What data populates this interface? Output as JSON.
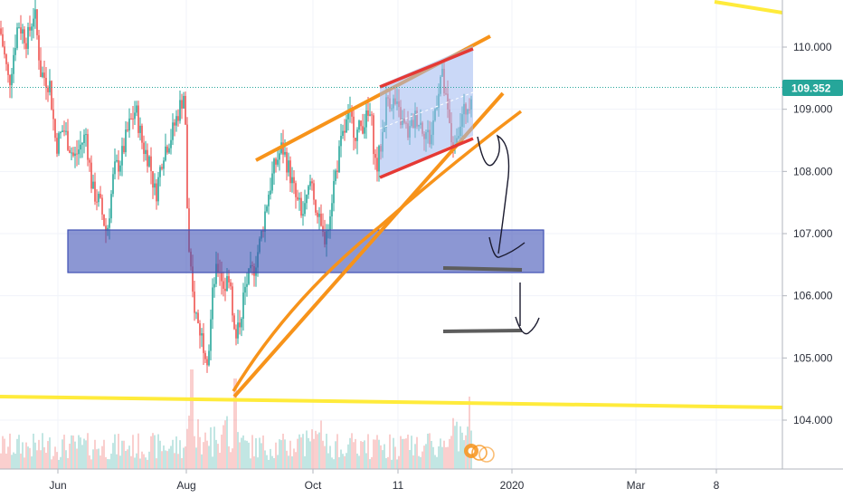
{
  "chart_data": {
    "type": "candlestick",
    "y_axis": {
      "ticks": [
        110.0,
        109.0,
        108.0,
        107.0,
        106.0,
        105.0,
        104.0
      ],
      "tick_labels": [
        "110.000",
        "109.000",
        "108.000",
        "107.000",
        "106.000",
        "105.000",
        "104.000"
      ],
      "ylim": [
        103.2,
        110.75
      ]
    },
    "x_axis": {
      "tick_labels": [
        "Jun",
        "Aug",
        "Oct",
        "11",
        "2020",
        "Mar",
        "8"
      ]
    },
    "current_price": {
      "value": 109.352,
      "label": "109.352",
      "color": "#26a69a"
    },
    "price_path": [
      [
        0,
        110.3
      ],
      [
        10,
        109.4
      ],
      [
        20,
        110.4
      ],
      [
        30,
        110.1
      ],
      [
        38,
        110.6
      ],
      [
        45,
        109.6
      ],
      [
        55,
        109.4
      ],
      [
        62,
        108.4
      ],
      [
        70,
        108.7
      ],
      [
        82,
        108.2
      ],
      [
        95,
        108.6
      ],
      [
        102,
        107.7
      ],
      [
        110,
        107.5
      ],
      [
        118,
        107.0
      ],
      [
        126,
        108.0
      ],
      [
        134,
        108.2
      ],
      [
        142,
        108.7
      ],
      [
        150,
        109.0
      ],
      [
        158,
        108.4
      ],
      [
        165,
        108.2
      ],
      [
        172,
        107.6
      ],
      [
        180,
        108.3
      ],
      [
        190,
        108.6
      ],
      [
        198,
        109.0
      ],
      [
        204,
        109.3
      ],
      [
        208,
        106.8
      ],
      [
        213,
        106.0
      ],
      [
        218,
        105.6
      ],
      [
        224,
        105.3
      ],
      [
        230,
        105.0
      ],
      [
        236,
        106.2
      ],
      [
        242,
        106.5
      ],
      [
        248,
        106.1
      ],
      [
        254,
        106.4
      ],
      [
        260,
        105.2
      ],
      [
        266,
        105.7
      ],
      [
        272,
        106.2
      ],
      [
        280,
        106.4
      ],
      [
        288,
        106.9
      ],
      [
        296,
        107.6
      ],
      [
        304,
        108.1
      ],
      [
        312,
        108.4
      ],
      [
        320,
        108.0
      ],
      [
        328,
        107.5
      ],
      [
        336,
        107.3
      ],
      [
        344,
        107.9
      ],
      [
        352,
        107.2
      ],
      [
        358,
        106.9
      ],
      [
        364,
        107.3
      ],
      [
        370,
        107.9
      ],
      [
        378,
        108.5
      ],
      [
        386,
        108.9
      ],
      [
        394,
        108.6
      ],
      [
        402,
        108.8
      ],
      [
        410,
        108.9
      ],
      [
        416,
        108.0
      ],
      [
        422,
        108.5
      ],
      [
        428,
        109.2
      ],
      [
        436,
        109.1
      ],
      [
        444,
        108.8
      ],
      [
        452,
        108.6
      ],
      [
        460,
        108.9
      ],
      [
        468,
        108.7
      ],
      [
        476,
        108.5
      ],
      [
        482,
        109.1
      ],
      [
        488,
        109.6
      ],
      [
        494,
        109.0
      ],
      [
        500,
        108.4
      ],
      [
        506,
        108.7
      ],
      [
        512,
        108.9
      ],
      [
        518,
        109.1
      ],
      [
        522,
        109.35
      ]
    ],
    "series_colors": {
      "up": "#26a69a",
      "down": "#ef5350"
    },
    "drawings": {
      "support_line_color": "#ffeb3b",
      "trend_line_color": "#f7931a",
      "channel_line_color": "#e53935",
      "channel_fill": "#9fb8f0",
      "zone_fill": "#3f51b5",
      "target_line_color": "#5d5d5d",
      "arrow_color": "#1a1a2e"
    }
  }
}
